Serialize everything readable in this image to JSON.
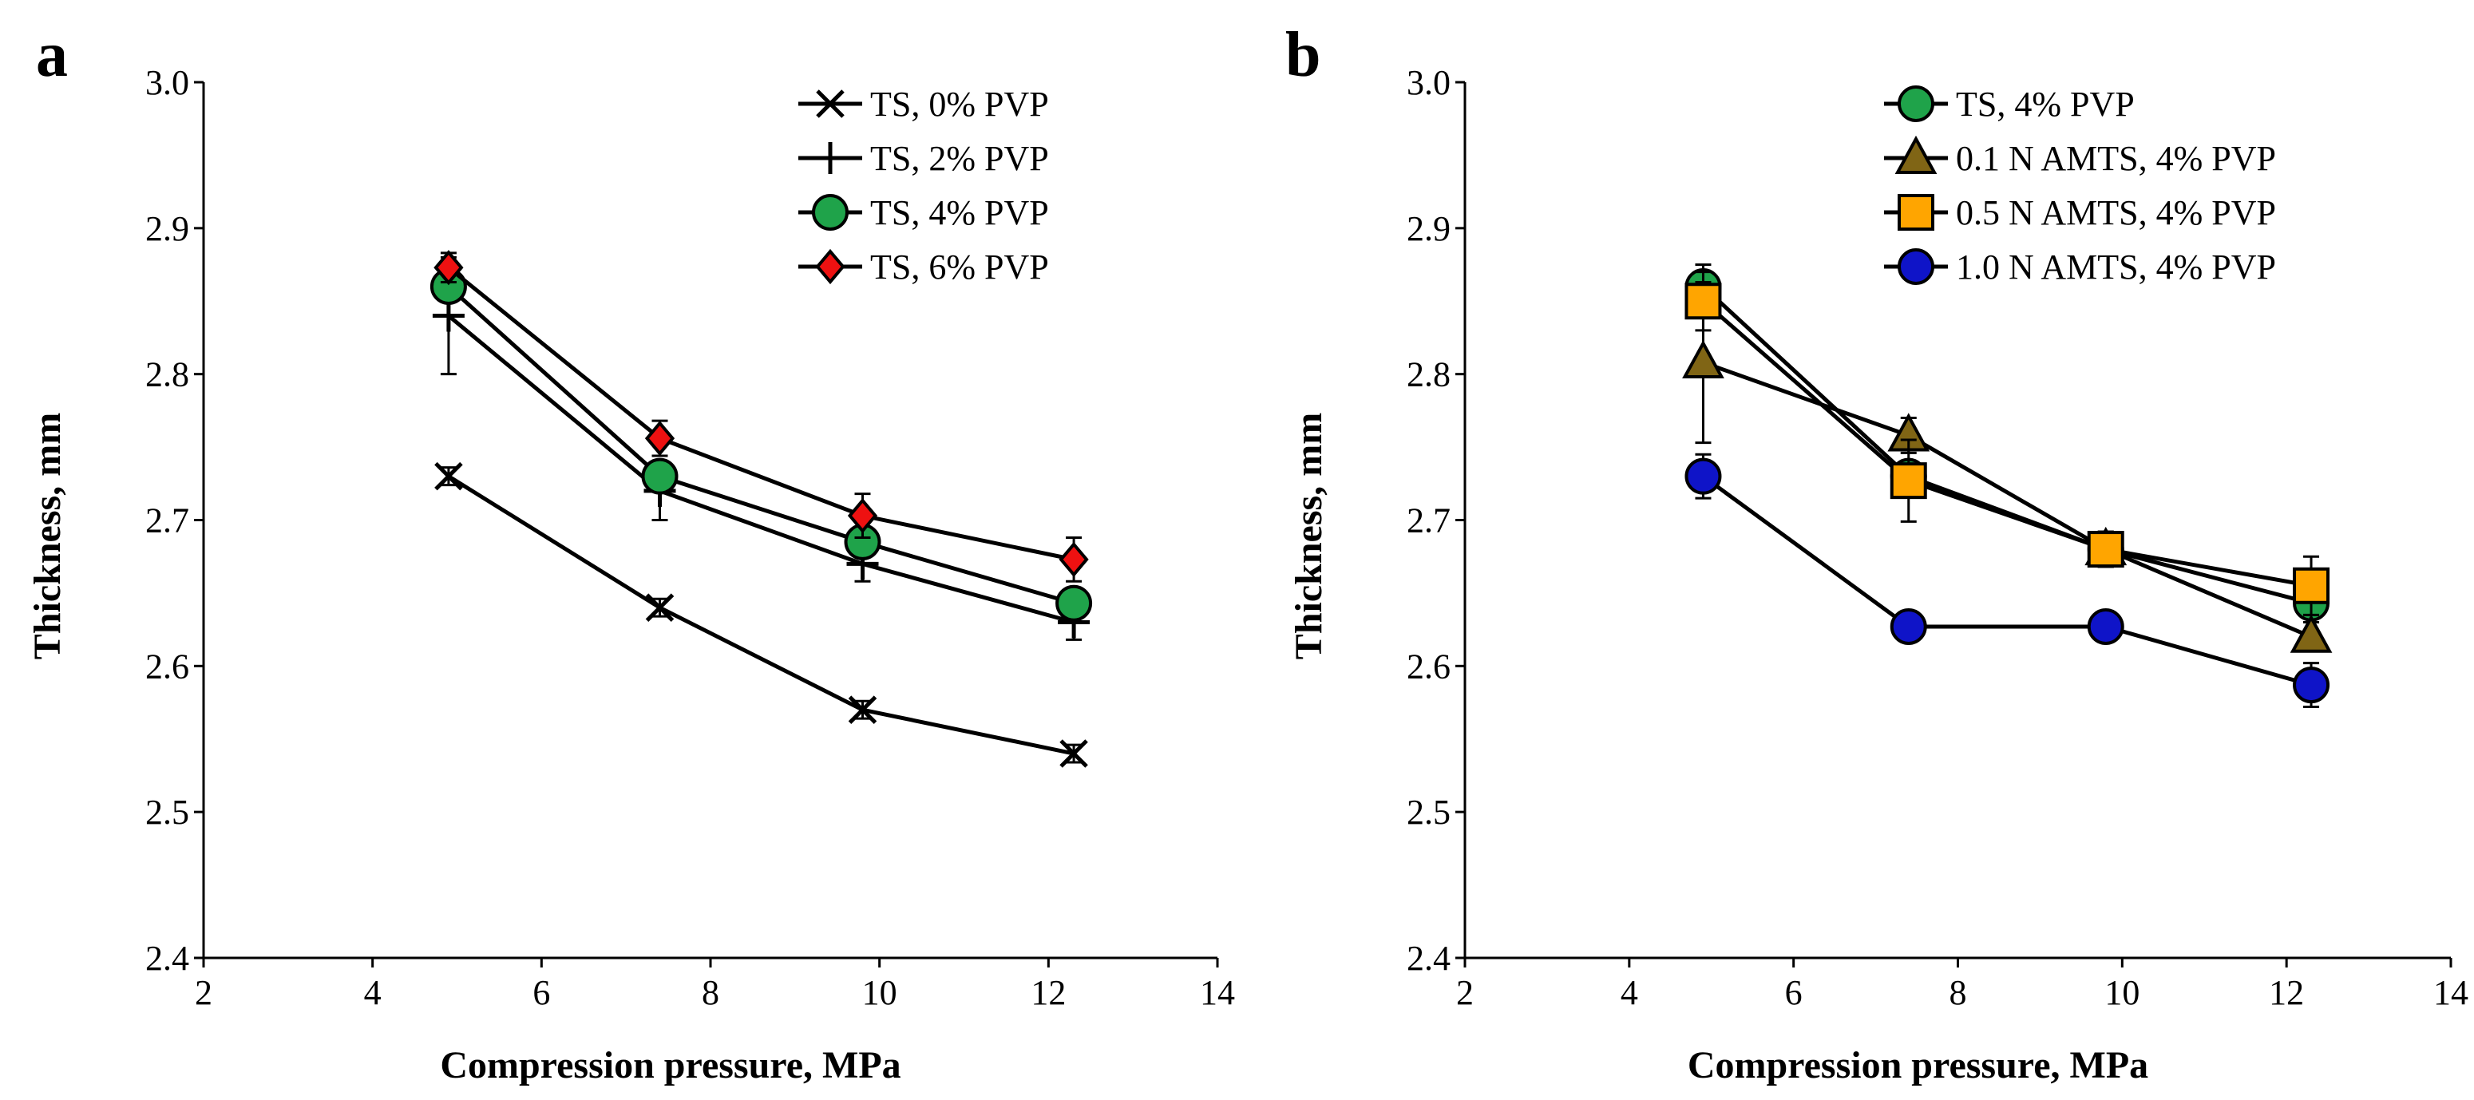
{
  "chart_data": [
    {
      "type": "line",
      "panel_label": "a",
      "title": "",
      "xlabel": "Compression pressure, MPa",
      "ylabel": "Thickness, mm",
      "xlim": [
        2,
        14
      ],
      "ylim": [
        2.4,
        3.0
      ],
      "xticks": [
        "2",
        "4",
        "6",
        "8",
        "10",
        "12",
        "14"
      ],
      "yticks": [
        "2.4",
        "2.5",
        "2.6",
        "2.7",
        "2.8",
        "2.9",
        "3.0"
      ],
      "legend_position": "top-right",
      "x": [
        4.9,
        7.4,
        9.8,
        12.3
      ],
      "series": [
        {
          "name": "TS, 0% PVP",
          "marker": "x",
          "color": "#000000",
          "values": [
            2.73,
            2.64,
            2.57,
            2.54
          ],
          "errors": [
            0.006,
            0.006,
            0.006,
            0.006
          ]
        },
        {
          "name": "TS, 2% PVP",
          "marker": "plus",
          "color": "#000000",
          "values": [
            2.84,
            2.72,
            2.67,
            2.63
          ],
          "errors": [
            0.04,
            0.02,
            0.012,
            0.012
          ]
        },
        {
          "name": "TS, 4% PVP",
          "marker": "circle",
          "color": "#1fa34a",
          "values": [
            2.86,
            2.73,
            2.685,
            2.643
          ],
          "errors": [
            0.01,
            0.01,
            0.01,
            0.01
          ]
        },
        {
          "name": "TS, 6% PVP",
          "marker": "diamond",
          "color": "#ee1111",
          "values": [
            2.873,
            2.756,
            2.703,
            2.673
          ],
          "errors": [
            0.01,
            0.012,
            0.015,
            0.015
          ]
        }
      ]
    },
    {
      "type": "line",
      "panel_label": "b",
      "title": "",
      "xlabel": "Compression pressure, MPa",
      "ylabel": "Thickness, mm",
      "xlim": [
        2,
        14
      ],
      "ylim": [
        2.4,
        3.0
      ],
      "xticks": [
        "2",
        "4",
        "6",
        "8",
        "10",
        "12",
        "14"
      ],
      "yticks": [
        "2.4",
        "2.5",
        "2.6",
        "2.7",
        "2.8",
        "2.9",
        "3.0"
      ],
      "legend_position": "top-right",
      "x": [
        4.9,
        7.4,
        9.8,
        12.3
      ],
      "series": [
        {
          "name": "TS, 4% PVP",
          "marker": "circle",
          "color": "#1fa34a",
          "values": [
            2.86,
            2.73,
            2.68,
            2.643
          ],
          "errors": [
            0.015,
            0.01,
            0.01,
            0.01
          ]
        },
        {
          "name": "0.1 N AMTS, 4% PVP",
          "marker": "triangle",
          "color": "#806515",
          "values": [
            2.808,
            2.758,
            2.68,
            2.62
          ],
          "errors": [
            0.055,
            0.012,
            0.012,
            0.01
          ]
        },
        {
          "name": "0.5 N AMTS, 4% PVP",
          "marker": "square",
          "color": "#ffa500",
          "values": [
            2.85,
            2.727,
            2.68,
            2.655
          ],
          "errors": [
            0.02,
            0.028,
            0.012,
            0.02
          ]
        },
        {
          "name": "1.0 N AMTS, 4% PVP",
          "marker": "circle",
          "color": "#0f14c8",
          "values": [
            2.73,
            2.627,
            2.627,
            2.587
          ],
          "errors": [
            0.015,
            0.006,
            0.006,
            0.015
          ]
        }
      ]
    }
  ]
}
